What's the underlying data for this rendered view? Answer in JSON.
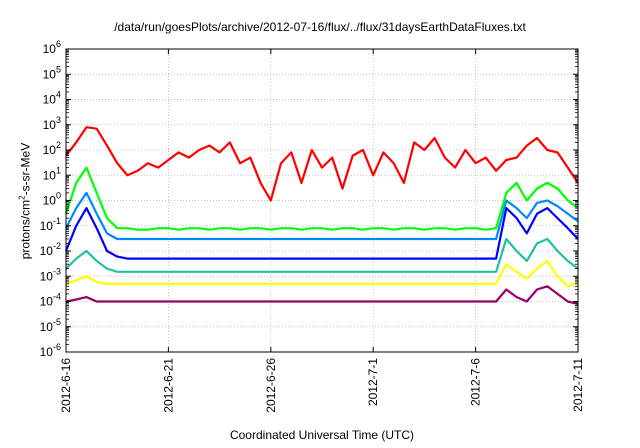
{
  "chart_data": {
    "type": "line",
    "title": "/data/run/goesPlots/archive/2012-07-16/flux/../flux/31daysEarthDataFluxes.txt",
    "xlabel": "Coordinated Universal Time (UTC)",
    "ylabel": {
      "prefix": "protons/cm",
      "sup": "2",
      "suffix": "-s-sr-MeV"
    },
    "yscale": "log",
    "ylim": [
      1e-06,
      1000000.0
    ],
    "ytick_labels": [
      {
        "base": "10",
        "exp": "-6"
      },
      {
        "base": "10",
        "exp": "-5"
      },
      {
        "base": "10",
        "exp": "-4"
      },
      {
        "base": "10",
        "exp": "-3"
      },
      {
        "base": "10",
        "exp": "-2"
      },
      {
        "base": "10",
        "exp": "-1"
      },
      {
        "base": "10",
        "exp": "0"
      },
      {
        "base": "10",
        "exp": "1"
      },
      {
        "base": "10",
        "exp": "2"
      },
      {
        "base": "10",
        "exp": "3"
      },
      {
        "base": "10",
        "exp": "4"
      },
      {
        "base": "10",
        "exp": "5"
      },
      {
        "base": "10",
        "exp": "6"
      }
    ],
    "xlim": [
      "2012-06-16",
      "2012-07-11"
    ],
    "xtick_labels": [
      "2012-6-16",
      "2012-6-21",
      "2012-6-26",
      "2012-7-1",
      "2012-7-6",
      "2012-7-11"
    ],
    "grid": true,
    "x": [
      "2012-06-16",
      "2012-06-16.5",
      "2012-06-17",
      "2012-06-17.5",
      "2012-06-18",
      "2012-06-18.5",
      "2012-06-19",
      "2012-06-19.5",
      "2012-06-20",
      "2012-06-20.5",
      "2012-06-21",
      "2012-06-21.5",
      "2012-06-22",
      "2012-06-22.5",
      "2012-06-23",
      "2012-06-23.5",
      "2012-06-24",
      "2012-06-24.5",
      "2012-06-25",
      "2012-06-25.5",
      "2012-06-26",
      "2012-06-26.5",
      "2012-06-27",
      "2012-06-27.5",
      "2012-06-28",
      "2012-06-28.5",
      "2012-06-29",
      "2012-06-29.5",
      "2012-06-30",
      "2012-06-30.5",
      "2012-07-01",
      "2012-07-01.5",
      "2012-07-02",
      "2012-07-02.5",
      "2012-07-03",
      "2012-07-03.5",
      "2012-07-04",
      "2012-07-04.5",
      "2012-07-05",
      "2012-07-05.5",
      "2012-07-06",
      "2012-07-06.5",
      "2012-07-07",
      "2012-07-07.5",
      "2012-07-08",
      "2012-07-08.5",
      "2012-07-09",
      "2012-07-09.5",
      "2012-07-10",
      "2012-07-10.5",
      "2012-07-11"
    ],
    "series": [
      {
        "color": "#ff0000",
        "values": [
          60,
          200,
          800,
          700,
          150,
          30,
          10,
          15,
          30,
          20,
          40,
          80,
          50,
          100,
          150,
          80,
          200,
          30,
          50,
          5,
          1,
          30,
          80,
          5,
          100,
          20,
          50,
          3,
          60,
          100,
          10,
          80,
          30,
          5,
          200,
          100,
          300,
          50,
          20,
          100,
          30,
          50,
          15,
          40,
          50,
          150,
          300,
          100,
          80,
          20,
          5
        ]
      },
      {
        "color": "#00ff00",
        "values": [
          0.3,
          5,
          20,
          2,
          0.2,
          0.08,
          0.08,
          0.07,
          0.07,
          0.08,
          0.08,
          0.07,
          0.08,
          0.08,
          0.07,
          0.08,
          0.08,
          0.07,
          0.08,
          0.08,
          0.07,
          0.08,
          0.08,
          0.07,
          0.08,
          0.08,
          0.07,
          0.08,
          0.08,
          0.07,
          0.08,
          0.08,
          0.07,
          0.08,
          0.08,
          0.07,
          0.08,
          0.08,
          0.07,
          0.08,
          0.08,
          0.07,
          0.08,
          2,
          5,
          1,
          3,
          5,
          3,
          1,
          0.5
        ]
      },
      {
        "color": "#0088ff",
        "values": [
          0.08,
          0.5,
          2,
          0.3,
          0.05,
          0.03,
          0.03,
          0.03,
          0.03,
          0.03,
          0.03,
          0.03,
          0.03,
          0.03,
          0.03,
          0.03,
          0.03,
          0.03,
          0.03,
          0.03,
          0.03,
          0.03,
          0.03,
          0.03,
          0.03,
          0.03,
          0.03,
          0.03,
          0.03,
          0.03,
          0.03,
          0.03,
          0.03,
          0.03,
          0.03,
          0.03,
          0.03,
          0.03,
          0.03,
          0.03,
          0.03,
          0.03,
          0.03,
          1,
          0.5,
          0.2,
          0.8,
          1,
          0.6,
          0.3,
          0.15
        ]
      },
      {
        "color": "#0000ff",
        "values": [
          0.01,
          0.1,
          0.5,
          0.08,
          0.01,
          0.006,
          0.005,
          0.005,
          0.005,
          0.005,
          0.005,
          0.005,
          0.005,
          0.005,
          0.005,
          0.005,
          0.005,
          0.005,
          0.005,
          0.005,
          0.005,
          0.005,
          0.005,
          0.005,
          0.005,
          0.005,
          0.005,
          0.005,
          0.005,
          0.005,
          0.005,
          0.005,
          0.005,
          0.005,
          0.005,
          0.005,
          0.005,
          0.005,
          0.005,
          0.005,
          0.005,
          0.005,
          0.005,
          0.5,
          0.2,
          0.05,
          0.3,
          0.5,
          0.2,
          0.08,
          0.03
        ]
      },
      {
        "color": "#20c0a0",
        "values": [
          0.002,
          0.005,
          0.01,
          0.004,
          0.002,
          0.0015,
          0.0015,
          0.0015,
          0.0015,
          0.0015,
          0.0015,
          0.0015,
          0.0015,
          0.0015,
          0.0015,
          0.0015,
          0.0015,
          0.0015,
          0.0015,
          0.0015,
          0.0015,
          0.0015,
          0.0015,
          0.0015,
          0.0015,
          0.0015,
          0.0015,
          0.0015,
          0.0015,
          0.0015,
          0.0015,
          0.0015,
          0.0015,
          0.0015,
          0.0015,
          0.0015,
          0.0015,
          0.0015,
          0.0015,
          0.0015,
          0.0015,
          0.0015,
          0.0015,
          0.03,
          0.01,
          0.004,
          0.02,
          0.03,
          0.01,
          0.004,
          0.002
        ]
      },
      {
        "color": "#ffff00",
        "values": [
          0.0005,
          0.0007,
          0.001,
          0.0006,
          0.0005,
          0.0005,
          0.0005,
          0.0005,
          0.0005,
          0.0005,
          0.0005,
          0.0005,
          0.0005,
          0.0005,
          0.0005,
          0.0005,
          0.0005,
          0.0005,
          0.0005,
          0.0005,
          0.0005,
          0.0005,
          0.0005,
          0.0005,
          0.0005,
          0.0005,
          0.0005,
          0.0005,
          0.0005,
          0.0005,
          0.0005,
          0.0005,
          0.0005,
          0.0005,
          0.0005,
          0.0005,
          0.0005,
          0.0005,
          0.0005,
          0.0005,
          0.0005,
          0.0005,
          0.0005,
          0.003,
          0.0015,
          0.0008,
          0.002,
          0.004,
          0.001,
          0.0004,
          0.0006
        ]
      },
      {
        "color": "#990066",
        "values": [
          0.0001,
          0.00012,
          0.00015,
          0.0001,
          0.0001,
          0.0001,
          0.0001,
          0.0001,
          0.0001,
          0.0001,
          0.0001,
          0.0001,
          0.0001,
          0.0001,
          0.0001,
          0.0001,
          0.0001,
          0.0001,
          0.0001,
          0.0001,
          0.0001,
          0.0001,
          0.0001,
          0.0001,
          0.0001,
          0.0001,
          0.0001,
          0.0001,
          0.0001,
          0.0001,
          0.0001,
          0.0001,
          0.0001,
          0.0001,
          0.0001,
          0.0001,
          0.0001,
          0.0001,
          0.0001,
          0.0001,
          0.0001,
          0.0001,
          0.0001,
          0.0003,
          0.00015,
          0.0001,
          0.0003,
          0.0004,
          0.0002,
          0.0001,
          8e-05
        ]
      }
    ]
  }
}
